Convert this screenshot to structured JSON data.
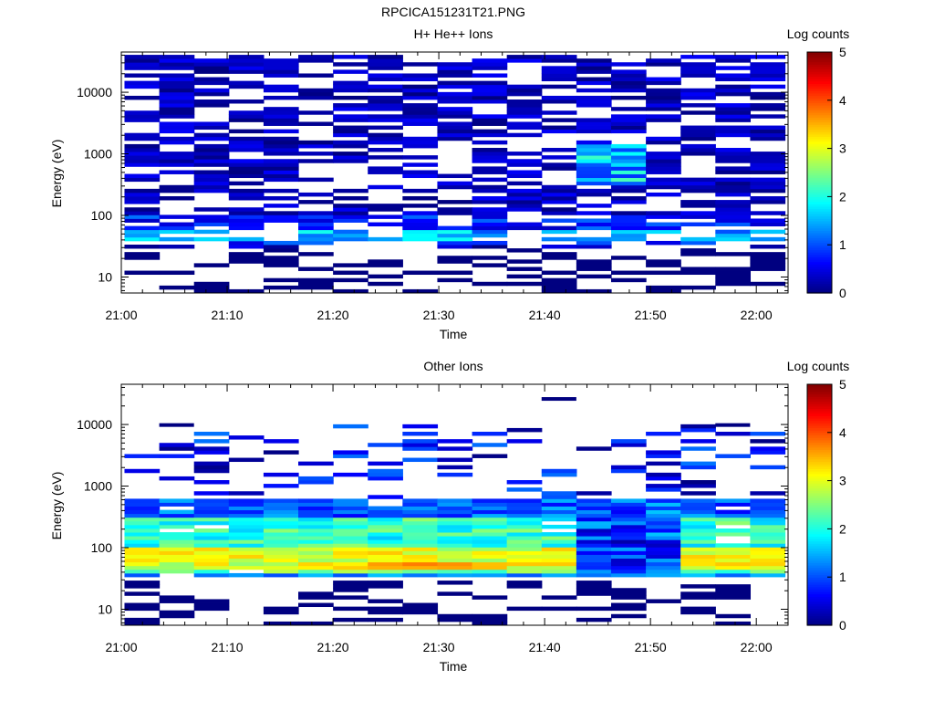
{
  "figure_title": "RPCICA151231T21.PNG",
  "panels": [
    {
      "title": "H+ He++ Ions",
      "xlabel": "Time",
      "ylabel": "Energy (eV)",
      "colorbar_label": "Log counts"
    },
    {
      "title": "Other Ions",
      "xlabel": "Time",
      "ylabel": "Energy (eV)",
      "colorbar_label": "Log counts"
    }
  ],
  "chart_data": [
    {
      "type": "heatmap",
      "title": "H+ He++ Ions",
      "xlabel": "Time",
      "ylabel": "Energy (eV)",
      "x_ticks": [
        "21:00",
        "21:10",
        "21:20",
        "21:30",
        "21:40",
        "21:50",
        "22:00"
      ],
      "x_range_min": [
        0,
        63
      ],
      "y_scale": "log",
      "y_range_eV": [
        5.5,
        45000
      ],
      "y_ticks": [
        "10",
        "100",
        "1000",
        "10000"
      ],
      "colorbar": {
        "label": "Log counts",
        "range": [
          0,
          5
        ],
        "ticks": [
          "0",
          "1",
          "2",
          "3",
          "4",
          "5"
        ],
        "colormap": "jet"
      },
      "time_bins": 19,
      "energy_bins": 64,
      "seed": 11,
      "fill_probability": 0.6,
      "bands": [
        {
          "e_min": 5.5,
          "e_max": 45000,
          "level_min": 0.0,
          "level_max": 0.6
        },
        {
          "e_min": 35,
          "e_max": 100,
          "level_min": 0.3,
          "level_max": 1.2
        },
        {
          "e_min": 40,
          "e_max": 60,
          "level_min": 1.0,
          "level_max": 2.0
        }
      ],
      "hotspots": [
        {
          "t_from": 13,
          "t_to": 14,
          "e_min": 300,
          "e_max": 1500,
          "level_min": 0.8,
          "level_max": 2.3
        },
        {
          "t_from": 8,
          "t_to": 8,
          "e_min": 40,
          "e_max": 60,
          "level_min": 1.8,
          "level_max": 2.4
        }
      ],
      "sparse_low_energy": {
        "e_max": 30,
        "fill_probability": 0.35,
        "level": 0.0
      }
    },
    {
      "type": "heatmap",
      "title": "Other Ions",
      "xlabel": "Time",
      "ylabel": "Energy (eV)",
      "x_ticks": [
        "21:00",
        "21:10",
        "21:20",
        "21:30",
        "21:40",
        "21:50",
        "22:00"
      ],
      "x_range_min": [
        0,
        63
      ],
      "y_scale": "log",
      "y_range_eV": [
        5.5,
        45000
      ],
      "y_ticks": [
        "10",
        "100",
        "1000",
        "10000"
      ],
      "colorbar": {
        "label": "Log counts",
        "range": [
          0,
          5
        ],
        "ticks": [
          "0",
          "1",
          "2",
          "3",
          "4",
          "5"
        ],
        "colormap": "jet"
      },
      "time_bins": 19,
      "energy_bins": 64,
      "seed": 29,
      "fill_probability": 0.97,
      "bands": [
        {
          "e_min": 300,
          "e_max": 650,
          "level_min": 0.6,
          "level_max": 1.6
        },
        {
          "e_min": 100,
          "e_max": 300,
          "level_min": 1.6,
          "level_max": 2.6
        },
        {
          "e_min": 45,
          "e_max": 100,
          "level_min": 2.5,
          "level_max": 3.4
        },
        {
          "e_min": 38,
          "e_max": 45,
          "level_min": 2.0,
          "level_max": 2.8
        },
        {
          "e_min": 33,
          "e_max": 38,
          "level_min": 1.0,
          "level_max": 1.6
        }
      ],
      "hotspots": [
        {
          "t_from": 7,
          "t_to": 10,
          "e_min": 45,
          "e_max": 60,
          "level_min": 3.4,
          "level_max": 3.9
        },
        {
          "t_from": 13,
          "t_to": 15,
          "e_min": 38,
          "e_max": 300,
          "level_min": 0.2,
          "level_max": 1.6
        }
      ],
      "sparse_high_energy": {
        "e_min": 650,
        "e_max": 10000,
        "fill_probability": 0.22,
        "level_min": 0.0,
        "level_max": 1.2
      },
      "sparse_low_energy": {
        "e_max": 30,
        "fill_probability": 0.3,
        "level": 0.0
      },
      "isolated_points": [
        {
          "t": 12,
          "e": 26000,
          "level": 0.0
        },
        {
          "t": 1,
          "e": 9800,
          "level": 0.0
        },
        {
          "t": 17,
          "e": 9800,
          "level": 0.0
        }
      ]
    }
  ]
}
